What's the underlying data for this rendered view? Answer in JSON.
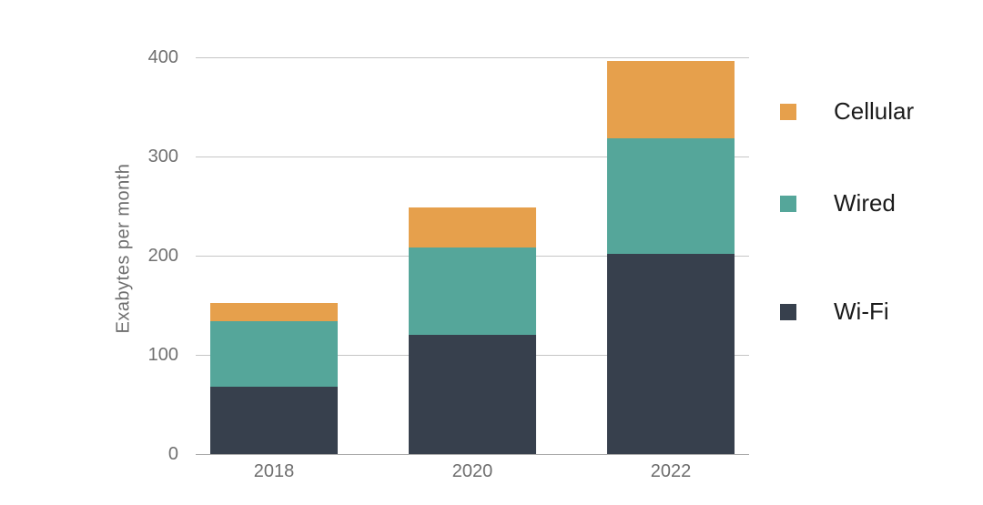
{
  "chart_data": {
    "type": "bar",
    "stacked": true,
    "title": "",
    "ylabel": "Exabytes per month",
    "xlabel": "",
    "ylim": [
      0,
      400
    ],
    "yticks": [
      "0",
      "100",
      "200",
      "300",
      "400"
    ],
    "grid": true,
    "categories": [
      "2018",
      "2020",
      "2022"
    ],
    "series": [
      {
        "name": "Wi-Fi",
        "color": "#37404D",
        "values": [
          68,
          120,
          202
        ]
      },
      {
        "name": "Wired",
        "color": "#55A69A",
        "values": [
          66,
          88,
          116
        ]
      },
      {
        "name": "Cellular",
        "color": "#E6A04C",
        "values": [
          18,
          41,
          78
        ]
      }
    ],
    "totals": [
      152,
      249,
      396
    ],
    "legend": {
      "position": "right",
      "items": [
        {
          "label": "Cellular",
          "color": "#E6A04C"
        },
        {
          "label": "Wired",
          "color": "#55A69A"
        },
        {
          "label": "Wi-Fi",
          "color": "#37404D"
        }
      ]
    }
  },
  "colors": {
    "background": "#ffffff",
    "gridline": "#c6c6c6",
    "baseline": "#ababab",
    "tick_text": "#707070",
    "axis_title_text": "#6e6e6e",
    "legend_text": "#1b1b1b"
  }
}
